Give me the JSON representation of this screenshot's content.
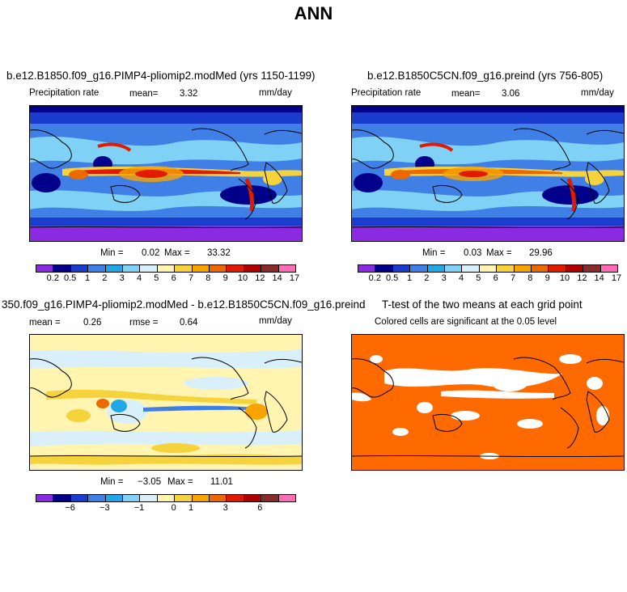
{
  "page": {
    "title": "ANN"
  },
  "chart_data": [
    {
      "type": "heatmap",
      "title": "b.e12.B1850.f09_g16.PIMP4-pliomip2.modMed (yrs 1150-1199)",
      "variable": "Precipitation rate",
      "mean_label": "mean=",
      "mean": "3.32",
      "units": "mm/day",
      "min_label": "Min =",
      "min": "0.02",
      "max_label": "Max =",
      "max": "33.32",
      "colorbar": {
        "colors": [
          "#8a2be2",
          "#00008b",
          "#1a3dcd",
          "#3f7fe6",
          "#21a6e6",
          "#7fd2f5",
          "#d9f0fa",
          "#fff5b0",
          "#f6d33c",
          "#f7a400",
          "#ec6800",
          "#e21a00",
          "#b00000",
          "#8b2a2a",
          "#ff6cb6"
        ],
        "labels": [
          "0.2",
          "0.5",
          "1",
          "2",
          "3",
          "4",
          "5",
          "6",
          "7",
          "8",
          "9",
          "10",
          "12",
          "14",
          "17"
        ]
      }
    },
    {
      "type": "heatmap",
      "title": "b.e12.B1850C5CN.f09_g16.preind (yrs 756-805)",
      "variable": "Precipitation rate",
      "mean_label": "mean=",
      "mean": "3.06",
      "units": "mm/day",
      "min_label": "Min =",
      "min": "0.03",
      "max_label": "Max =",
      "max": "29.96",
      "colorbar": {
        "colors": [
          "#8a2be2",
          "#00008b",
          "#1a3dcd",
          "#3f7fe6",
          "#21a6e6",
          "#7fd2f5",
          "#d9f0fa",
          "#fff5b0",
          "#f6d33c",
          "#f7a400",
          "#ec6800",
          "#e21a00",
          "#b00000",
          "#8b2a2a",
          "#ff6cb6"
        ],
        "labels": [
          "0.2",
          "0.5",
          "1",
          "2",
          "3",
          "4",
          "5",
          "6",
          "7",
          "8",
          "9",
          "10",
          "12",
          "14",
          "17"
        ]
      }
    },
    {
      "type": "heatmap",
      "title": "350.f09_g16.PIMP4-pliomip2.modMed - b.e12.B1850C5CN.f09_g16.preind",
      "mean_label": "mean =",
      "mean": "0.26",
      "rmse_label": "rmse =",
      "rmse": "0.64",
      "units": "mm/day",
      "min_label": "Min =",
      "min": "−3.05",
      "max_label": "Max =",
      "max": "11.01",
      "colorbar": {
        "colors": [
          "#8a2be2",
          "#00008b",
          "#1a3dcd",
          "#3f7fe6",
          "#21a6e6",
          "#7fd2f5",
          "#d9f0fa",
          "#fff5b0",
          "#f6d33c",
          "#f7a400",
          "#ec6800",
          "#e21a00",
          "#b00000",
          "#8b2a2a",
          "#ff6cb6"
        ],
        "labels": [
          "−6",
          "−3",
          "−1",
          "0",
          "1",
          "3",
          "6"
        ]
      }
    },
    {
      "type": "heatmap",
      "title": "T-test of the two means at each grid point",
      "subtitle": "Colored cells are significant at the 0.05 level",
      "significant_color": "#ff6a00",
      "insignificant_color": "#ffffff"
    }
  ]
}
